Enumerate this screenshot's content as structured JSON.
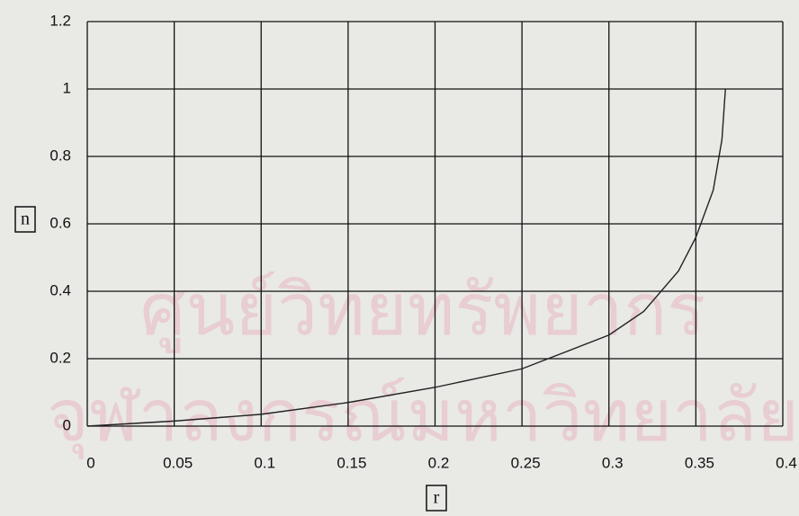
{
  "chart_data": {
    "type": "line",
    "x_label": "r",
    "y_label": "n",
    "watermark": [
      "ศูนย์วิทยทรัพยากร",
      "จุฬาลงกรณ์มหาวิทยาลัย"
    ],
    "x": [
      0,
      0.05,
      0.1,
      0.15,
      0.2,
      0.25,
      0.3,
      0.32,
      0.34,
      0.35,
      0.36,
      0.365,
      0.367
    ],
    "values": [
      0,
      0.015,
      0.035,
      0.07,
      0.115,
      0.17,
      0.27,
      0.34,
      0.46,
      0.56,
      0.7,
      0.85,
      1.0
    ],
    "color": "#222222",
    "xlim": [
      0,
      0.4
    ],
    "ylim": [
      0,
      1.2
    ],
    "xticks": [
      0,
      0.05,
      0.1,
      0.15,
      0.2,
      0.25,
      0.3,
      0.35,
      0.4
    ],
    "yticks": [
      0,
      0.2,
      0.4,
      0.6,
      0.8,
      1,
      1.2
    ],
    "grid": true
  }
}
